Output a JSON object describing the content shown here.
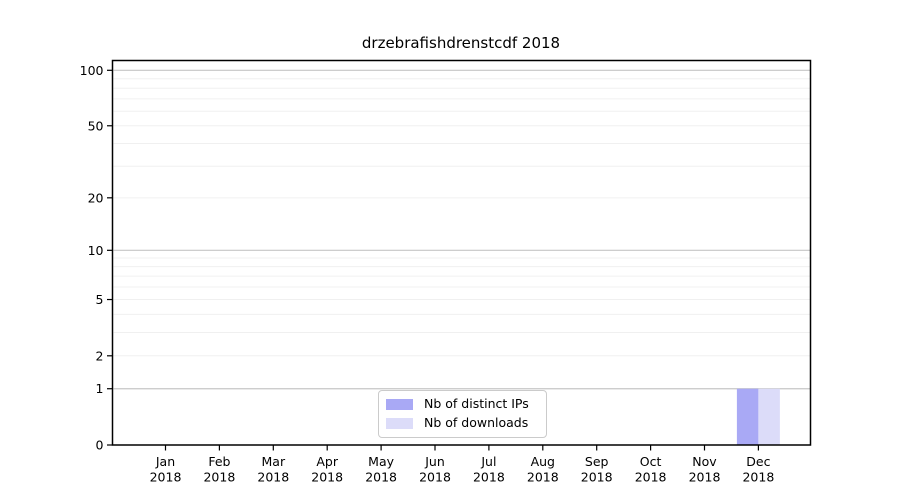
{
  "chart_data": {
    "type": "bar",
    "title": "drzebrafishdrenstcdf 2018",
    "categories": [
      "Jan",
      "Feb",
      "Mar",
      "Apr",
      "May",
      "Jun",
      "Jul",
      "Aug",
      "Sep",
      "Oct",
      "Nov",
      "Dec"
    ],
    "x_tick_second_line": "2018",
    "series": [
      {
        "name": "Nb of distinct IPs",
        "color": "#a9a9f5",
        "values": [
          0,
          0,
          0,
          0,
          0,
          0,
          0,
          0,
          0,
          0,
          0,
          1
        ]
      },
      {
        "name": "Nb of downloads",
        "color": "#dcdcf9",
        "values": [
          0,
          0,
          0,
          0,
          0,
          0,
          0,
          0,
          0,
          0,
          0,
          1
        ]
      }
    ],
    "y_axis": {
      "scale": "log1p",
      "tick_values": [
        0,
        1,
        2,
        5,
        10,
        20,
        50,
        100
      ],
      "major_gridlines": [
        1,
        10,
        100
      ],
      "minor_gridlines": [
        2,
        3,
        4,
        5,
        6,
        7,
        8,
        9,
        20,
        30,
        40,
        50,
        60,
        70,
        80,
        90
      ],
      "range": [
        0,
        113
      ],
      "grid": true
    },
    "legend": {
      "position": "bottom-center",
      "items": [
        "Nb of distinct IPs",
        "Nb of downloads"
      ]
    }
  },
  "colors": {
    "background": "#ffffff",
    "spine": "#000000",
    "tick": "#000000",
    "text": "#000000",
    "major_grid": "#c6c6c6",
    "minor_grid": "#f0f0f0",
    "legend_border": "#cbcbcb"
  }
}
